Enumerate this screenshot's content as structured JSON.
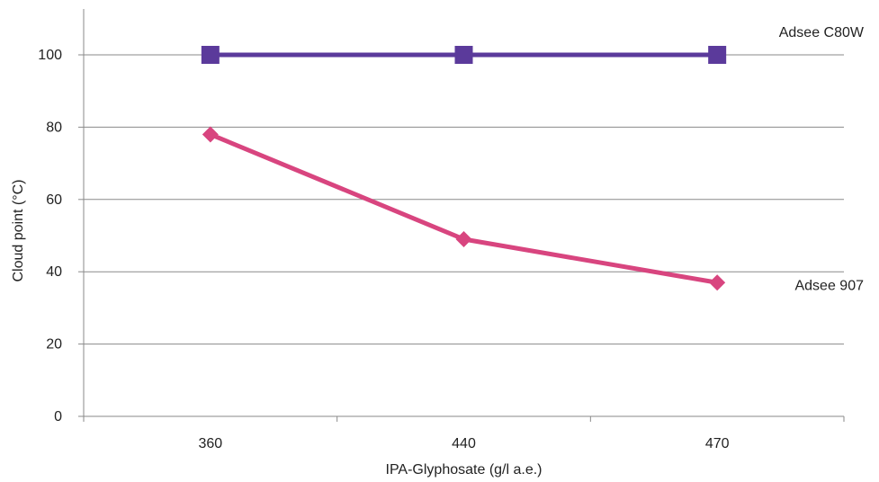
{
  "chart_data": {
    "type": "line",
    "title": "",
    "xlabel": "IPA-Glyphosate (g/l a.e.)",
    "ylabel": "Cloud point (°C)",
    "categories": [
      "360",
      "440",
      "470"
    ],
    "yticks": [
      0,
      20,
      40,
      60,
      80,
      100
    ],
    "ylim": [
      0,
      100
    ],
    "grid": true,
    "legend": "inline labels at right",
    "series": [
      {
        "name": "Adsee C80W",
        "values": [
          100,
          100,
          100
        ],
        "color": "#5b3a9b",
        "marker": "square"
      },
      {
        "name": "Adsee 907",
        "values": [
          78,
          49,
          37
        ],
        "color": "#d8457f",
        "marker": "diamond"
      }
    ]
  }
}
